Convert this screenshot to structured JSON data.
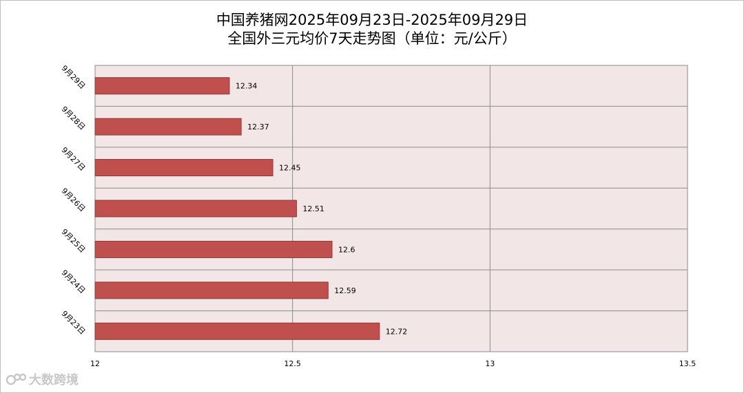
{
  "colors": {
    "bar_fill": "#c0504d",
    "bar_stroke": "#8c3836",
    "plot_background": "#f2e6e6",
    "grid": "#8a8a8a",
    "watermark": "#c8c8c8"
  },
  "watermark": {
    "icon": "brand-logo-icon",
    "text": "大数跨境"
  },
  "chart_data": {
    "type": "bar",
    "orientation": "horizontal",
    "title": "中国养猪网2025年09月23日-2025年09月29日",
    "subtitle": "全国外三元均价7天走势图（单位：元/公斤）",
    "categories": [
      "9月29日",
      "9月28日",
      "9月27日",
      "9月26日",
      "9月25日",
      "9月24日",
      "9月23日"
    ],
    "values": [
      12.34,
      12.37,
      12.45,
      12.51,
      12.6,
      12.59,
      12.72
    ],
    "value_labels": [
      "12.34",
      "12.37",
      "12.45",
      "12.51",
      "12.6",
      "12.59",
      "12.72"
    ],
    "xlim": [
      12,
      13.5
    ],
    "xticks": [
      12,
      12.5,
      13,
      13.5
    ],
    "xtick_labels": [
      "12",
      "12.5",
      "13",
      "13.5"
    ],
    "grid": true,
    "legend": "none"
  }
}
